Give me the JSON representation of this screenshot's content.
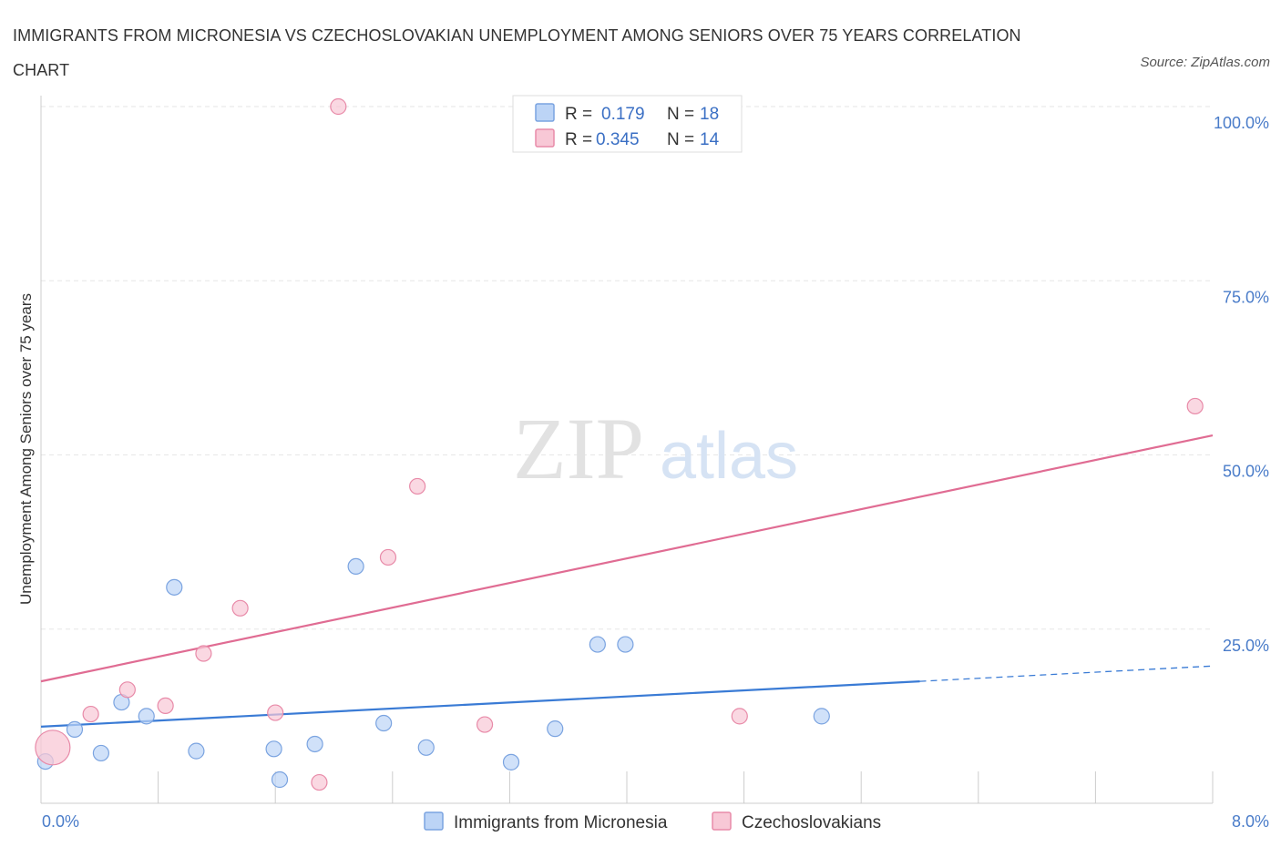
{
  "title": "IMMIGRANTS FROM MICRONESIA VS CZECHOSLOVAKIAN UNEMPLOYMENT AMONG SENIORS OVER 75 YEARS CORRELATION CHART",
  "source": "Source: ZipAtlas.com",
  "watermark": {
    "zip": "ZIP",
    "atlas": "atlas"
  },
  "legend": {
    "r_label": "R =",
    "n_label": "N =",
    "rows": [
      {
        "r": "0.179",
        "n": "18",
        "fill": "#bcd4f6",
        "stroke": "#7aa3e0"
      },
      {
        "r": "0.345",
        "n": "14",
        "fill": "#f8c8d6",
        "stroke": "#e88aa8"
      }
    ]
  },
  "bottom_legend": [
    "Immigrants from Micronesia",
    "Czechoslovakians"
  ],
  "chart_data": {
    "type": "scatter",
    "xlabel": "",
    "ylabel": "Unemployment Among Seniors over 75 years",
    "xlim": [
      0,
      8
    ],
    "ylim": [
      0,
      100
    ],
    "x_tick_labels": [
      "0.0%",
      "8.0%"
    ],
    "y_ticks": [
      25,
      50,
      75,
      100
    ],
    "y_tick_labels": [
      "25.0%",
      "50.0%",
      "75.0%",
      "100.0%"
    ],
    "grid": true,
    "legend_position": "top-center",
    "series": [
      {
        "name": "Immigrants from Micronesia",
        "color": "#3a7bd5",
        "fill": "#bcd4f6",
        "stroke": "#7aa3e0",
        "r": 0.179,
        "n": 18,
        "points": [
          [
            0.03,
            6.0
          ],
          [
            0.23,
            10.6
          ],
          [
            0.41,
            7.2
          ],
          [
            0.55,
            14.5
          ],
          [
            0.72,
            12.5
          ],
          [
            0.91,
            31.0
          ],
          [
            1.06,
            7.5
          ],
          [
            1.59,
            7.8
          ],
          [
            1.63,
            3.4
          ],
          [
            1.87,
            8.5
          ],
          [
            2.15,
            34.0
          ],
          [
            2.34,
            11.5
          ],
          [
            2.63,
            8.0
          ],
          [
            3.21,
            5.9
          ],
          [
            3.51,
            10.7
          ],
          [
            3.8,
            22.8
          ],
          [
            3.99,
            22.8
          ],
          [
            5.33,
            12.5
          ]
        ],
        "trend": {
          "x0": 0,
          "y0": 11.0,
          "x1": 6.0,
          "y1": 17.5,
          "dash_to_x": 8.0,
          "dash_to_y": 19.7
        }
      },
      {
        "name": "Czechoslovakians",
        "color": "#e06c93",
        "fill": "#f8c8d6",
        "stroke": "#e88aa8",
        "r": 0.345,
        "n": 14,
        "points": [
          [
            0.08,
            8.0,
            "large"
          ],
          [
            0.34,
            12.8
          ],
          [
            0.59,
            16.3
          ],
          [
            0.85,
            14.0
          ],
          [
            1.11,
            21.5
          ],
          [
            1.36,
            28.0
          ],
          [
            1.6,
            13.0
          ],
          [
            1.9,
            3.0
          ],
          [
            2.03,
            100.0
          ],
          [
            2.37,
            35.3
          ],
          [
            2.57,
            45.5
          ],
          [
            3.03,
            11.3
          ],
          [
            4.77,
            12.5
          ],
          [
            7.88,
            57.0
          ]
        ],
        "trend": {
          "x0": 0,
          "y0": 17.5,
          "x1": 8.0,
          "y1": 52.8
        }
      }
    ]
  }
}
